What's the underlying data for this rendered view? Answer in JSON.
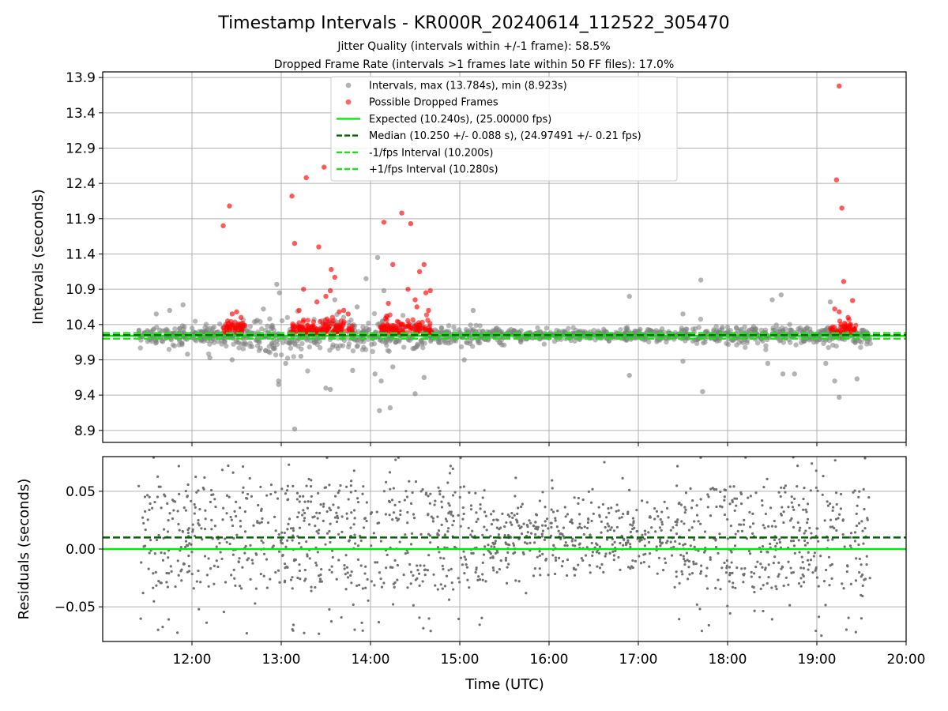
{
  "chart_data": {
    "title": "Timestamp Intervals - KR000R_20240614_112522_305470",
    "subtitle_1": "Jitter Quality (intervals within +/-1 frame): 58.5%",
    "subtitle_2": "Dropped Frame Rate (intervals >1 frames late within 50 FF files): 17.0%",
    "xlabel": "Time (UTC)",
    "x_ticks": [
      "12:00",
      "13:00",
      "14:00",
      "15:00",
      "16:00",
      "17:00",
      "18:00",
      "19:00",
      "20:00"
    ],
    "x_range_hours": [
      11.0,
      20.0
    ],
    "panels": [
      {
        "type": "scatter",
        "ylabel": "Intervals (seconds)",
        "ylim": [
          8.73,
          13.98
        ],
        "y_ticks": [
          "8.9",
          "9.4",
          "9.9",
          "10.4",
          "10.9",
          "11.4",
          "11.9",
          "12.4",
          "12.9",
          "13.4",
          "13.9"
        ],
        "grid": true,
        "legend_position": "top-center",
        "legend": [
          {
            "label": "Intervals, max (13.784s), min (8.923s)",
            "marker": "circle",
            "color": "#808080"
          },
          {
            "label": "Possible Dropped Frames",
            "marker": "circle",
            "color": "#ff0000"
          },
          {
            "label": "Expected (10.240s), (25.00000 fps)",
            "line": "solid",
            "color": "#00ee00"
          },
          {
            "label": "Median (10.250 +/- 0.088 s), (24.97491 +/- 0.21 fps)",
            "line": "dashed",
            "color": "#006400"
          },
          {
            "label": "-1/fps Interval (10.200s)",
            "line": "dashed",
            "color": "#22dd22"
          },
          {
            "label": "+1/fps Interval (10.280s)",
            "line": "dashed",
            "color": "#22dd22"
          }
        ],
        "lines": [
          {
            "y": 10.24,
            "color": "#00ee00",
            "dash": "solid"
          },
          {
            "y": 10.25,
            "color": "#006400",
            "dash": "dashed"
          },
          {
            "y": 10.2,
            "color": "#22dd22",
            "dash": "dashed"
          },
          {
            "y": 10.28,
            "color": "#22dd22",
            "dash": "dashed"
          }
        ],
        "intervals_band": {
          "time_range": [
            11.4,
            19.6
          ],
          "median": 10.25,
          "color": "#808080",
          "segments": [
            {
              "t0": 11.4,
              "t1": 12.5,
              "spread": 0.12
            },
            {
              "t0": 12.5,
              "t1": 13.7,
              "spread": 0.22
            },
            {
              "t0": 13.7,
              "t1": 14.6,
              "spread": 0.2
            },
            {
              "t0": 14.6,
              "t1": 15.5,
              "spread": 0.12
            },
            {
              "t0": 15.5,
              "t1": 16.8,
              "spread": 0.06
            },
            {
              "t0": 16.8,
              "t1": 17.6,
              "spread": 0.08
            },
            {
              "t0": 17.6,
              "t1": 19.6,
              "spread": 0.12
            }
          ]
        },
        "interval_outliers": [
          {
            "t": 11.6,
            "y": 10.55
          },
          {
            "t": 11.75,
            "y": 10.6
          },
          {
            "t": 11.9,
            "y": 10.68
          },
          {
            "t": 11.95,
            "y": 9.98
          },
          {
            "t": 12.2,
            "y": 9.93
          },
          {
            "t": 12.45,
            "y": 9.9
          },
          {
            "t": 12.8,
            "y": 10.62
          },
          {
            "t": 12.95,
            "y": 10.97
          },
          {
            "t": 12.97,
            "y": 9.6
          },
          {
            "t": 12.97,
            "y": 9.55
          },
          {
            "t": 12.98,
            "y": 10.85
          },
          {
            "t": 13.05,
            "y": 9.85
          },
          {
            "t": 13.15,
            "y": 8.92
          },
          {
            "t": 13.22,
            "y": 9.95
          },
          {
            "t": 13.5,
            "y": 9.5
          },
          {
            "t": 13.55,
            "y": 9.48
          },
          {
            "t": 13.6,
            "y": 10.75
          },
          {
            "t": 13.8,
            "y": 9.75
          },
          {
            "t": 13.85,
            "y": 10.65
          },
          {
            "t": 13.95,
            "y": 11.05
          },
          {
            "t": 14.05,
            "y": 9.7
          },
          {
            "t": 14.08,
            "y": 11.35
          },
          {
            "t": 14.1,
            "y": 9.18
          },
          {
            "t": 14.12,
            "y": 9.6
          },
          {
            "t": 14.15,
            "y": 10.88
          },
          {
            "t": 14.22,
            "y": 9.22
          },
          {
            "t": 14.25,
            "y": 9.8
          },
          {
            "t": 14.5,
            "y": 9.42
          },
          {
            "t": 14.6,
            "y": 9.65
          },
          {
            "t": 15.15,
            "y": 10.6
          },
          {
            "t": 15.05,
            "y": 9.9
          },
          {
            "t": 16.9,
            "y": 10.8
          },
          {
            "t": 16.9,
            "y": 9.68
          },
          {
            "t": 17.5,
            "y": 10.55
          },
          {
            "t": 17.5,
            "y": 9.88
          },
          {
            "t": 17.7,
            "y": 11.03
          },
          {
            "t": 17.72,
            "y": 9.45
          },
          {
            "t": 18.45,
            "y": 9.85
          },
          {
            "t": 18.5,
            "y": 10.75
          },
          {
            "t": 18.6,
            "y": 10.82
          },
          {
            "t": 18.62,
            "y": 9.7
          },
          {
            "t": 18.75,
            "y": 9.7
          },
          {
            "t": 19.1,
            "y": 9.85
          },
          {
            "t": 19.15,
            "y": 10.72
          },
          {
            "t": 19.2,
            "y": 9.6
          },
          {
            "t": 19.25,
            "y": 9.37
          },
          {
            "t": 19.45,
            "y": 9.63
          }
        ],
        "dropped_frames": [
          {
            "t": 12.35,
            "y": 11.8
          },
          {
            "t": 12.42,
            "y": 12.08
          },
          {
            "t": 12.45,
            "y": 10.55
          },
          {
            "t": 12.5,
            "y": 10.58
          },
          {
            "t": 12.55,
            "y": 10.5
          },
          {
            "t": 12.4,
            "y": 10.45
          },
          {
            "t": 13.12,
            "y": 12.22
          },
          {
            "t": 13.15,
            "y": 11.55
          },
          {
            "t": 13.2,
            "y": 10.6
          },
          {
            "t": 13.25,
            "y": 10.9
          },
          {
            "t": 13.28,
            "y": 12.48
          },
          {
            "t": 13.42,
            "y": 11.5
          },
          {
            "t": 13.48,
            "y": 12.63
          },
          {
            "t": 13.4,
            "y": 10.72
          },
          {
            "t": 13.5,
            "y": 10.8
          },
          {
            "t": 13.55,
            "y": 10.88
          },
          {
            "t": 13.56,
            "y": 11.18
          },
          {
            "t": 13.6,
            "y": 11.07
          },
          {
            "t": 13.65,
            "y": 10.58
          },
          {
            "t": 13.7,
            "y": 10.6
          },
          {
            "t": 13.75,
            "y": 10.55
          },
          {
            "t": 14.15,
            "y": 11.85
          },
          {
            "t": 14.25,
            "y": 11.25
          },
          {
            "t": 14.35,
            "y": 11.98
          },
          {
            "t": 14.42,
            "y": 10.9
          },
          {
            "t": 14.45,
            "y": 11.83
          },
          {
            "t": 14.5,
            "y": 10.75
          },
          {
            "t": 14.52,
            "y": 10.65
          },
          {
            "t": 14.55,
            "y": 11.15
          },
          {
            "t": 14.6,
            "y": 11.25
          },
          {
            "t": 14.62,
            "y": 10.85
          },
          {
            "t": 14.65,
            "y": 10.6
          },
          {
            "t": 14.67,
            "y": 10.88
          },
          {
            "t": 14.18,
            "y": 10.52
          },
          {
            "t": 14.2,
            "y": 10.7
          },
          {
            "t": 19.22,
            "y": 12.45
          },
          {
            "t": 19.25,
            "y": 13.78
          },
          {
            "t": 19.28,
            "y": 12.05
          },
          {
            "t": 19.3,
            "y": 11.01
          },
          {
            "t": 19.35,
            "y": 10.5
          },
          {
            "t": 19.4,
            "y": 10.74
          },
          {
            "t": 19.2,
            "y": 10.62
          },
          {
            "t": 19.25,
            "y": 10.58
          }
        ],
        "dropped_frame_clusters": [
          {
            "t0": 12.35,
            "t1": 12.6,
            "count": 40
          },
          {
            "t0": 13.1,
            "t1": 13.8,
            "count": 120
          },
          {
            "t0": 14.1,
            "t1": 14.7,
            "count": 90
          },
          {
            "t0": 19.15,
            "t1": 19.45,
            "count": 40
          }
        ]
      },
      {
        "type": "scatter",
        "ylabel": "Residuals (seconds)",
        "ylim": [
          -0.08,
          0.08
        ],
        "y_ticks": [
          "−0.05",
          "0.00",
          "0.05"
        ],
        "y_tick_values": [
          -0.05,
          0.0,
          0.05
        ],
        "grid": true,
        "lines": [
          {
            "y": 0.0,
            "color": "#00ee00",
            "dash": "solid"
          },
          {
            "y": 0.01,
            "color": "#006400",
            "dash": "dashed"
          }
        ],
        "residuals_band": {
          "time_range": [
            11.4,
            19.6
          ],
          "count": 1500,
          "color": "#707070",
          "center": 0.01,
          "spread": 0.045
        }
      }
    ]
  }
}
